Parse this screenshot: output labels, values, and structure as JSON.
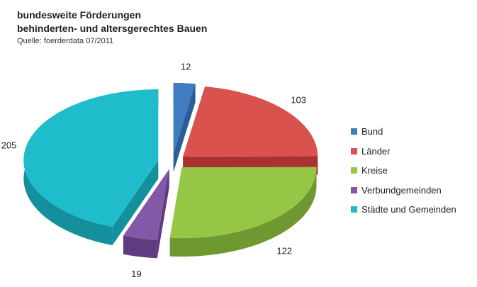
{
  "chart_data": {
    "type": "pie",
    "title_lines": [
      "bundesweite Förderungen",
      "behinderten- und altersgerechtes Bauen"
    ],
    "subtitle": "Quelle: foerderdata 07/2011",
    "slices": [
      {
        "name": "Bund",
        "value": 12,
        "color": "#3F7CC0",
        "side": "#2A5E96"
      },
      {
        "name": "Länder",
        "value": 103,
        "color": "#D9524E",
        "side": "#A8322F"
      },
      {
        "name": "Kreise",
        "value": 122,
        "color": "#96C646",
        "side": "#6F9830"
      },
      {
        "name": "Verbundgemeinden",
        "value": 19,
        "color": "#8458A8",
        "side": "#5F3B80"
      },
      {
        "name": "Städte und Gemeinden",
        "value": 205,
        "color": "#1FBCCB",
        "side": "#13909C"
      }
    ],
    "legend_position": "right"
  }
}
